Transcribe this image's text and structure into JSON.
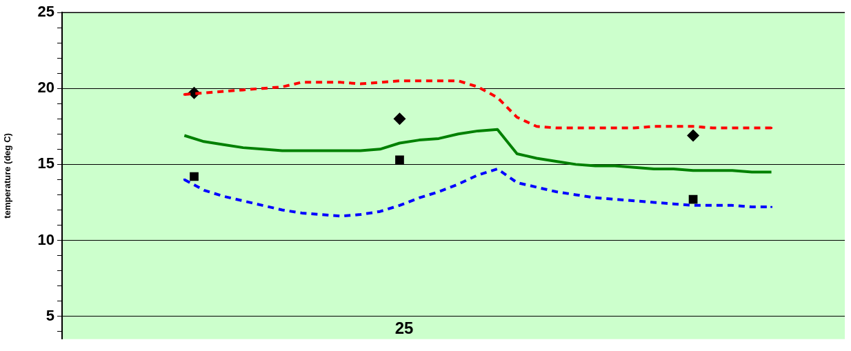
{
  "chart_data": {
    "type": "line",
    "ylabel": "temperature (deg C)",
    "ylim": [
      3.5,
      25
    ],
    "yticks": [
      {
        "value": 4,
        "label": null
      },
      5,
      {
        "value": 6,
        "label": null
      },
      {
        "value": 7,
        "label": null
      },
      {
        "value": 8,
        "label": null
      },
      {
        "value": 9,
        "label": null
      },
      10,
      {
        "value": 11,
        "label": null
      },
      {
        "value": 12,
        "label": null
      },
      {
        "value": 13,
        "label": null
      },
      {
        "value": 14,
        "label": null
      },
      15,
      {
        "value": 16,
        "label": null
      },
      {
        "value": 17,
        "label": null
      },
      {
        "value": 18,
        "label": null
      },
      {
        "value": 19,
        "label": null
      },
      20,
      {
        "value": 21,
        "label": null
      },
      {
        "value": 22,
        "label": null
      },
      {
        "value": 23,
        "label": null
      },
      {
        "value": 24,
        "label": null
      },
      25
    ],
    "grid": "y",
    "tick_labels": "y",
    "annotations": [
      "25"
    ],
    "categories": [
      null,
      null,
      null,
      null,
      null,
      null,
      null,
      null,
      null,
      null,
      null,
      null,
      null,
      null,
      null,
      null,
      null,
      null,
      null,
      null,
      null,
      null,
      null,
      null,
      null,
      null,
      null,
      null,
      null,
      null,
      null,
      null,
      null,
      null,
      null,
      null,
      null,
      null,
      null,
      null,
      null,
      null,
      null,
      null,
      null,
      null,
      null,
      null,
      null,
      null,
      null,
      null,
      null,
      null,
      null,
      null,
      null,
      null,
      null,
      null,
      null,
      null,
      null,
      null,
      null,
      null,
      null,
      null,
      null,
      null,
      null,
      null,
      null,
      null,
      null,
      null,
      null,
      null,
      null,
      null
    ],
    "series": [
      {
        "color": "#ff0000",
        "line_style": "dotted",
        "marker": "none",
        "values": [
          null,
          null,
          null,
          null,
          null,
          null,
          null,
          null,
          null,
          null,
          null,
          null,
          19.6,
          null,
          19.7,
          null,
          19.8,
          null,
          19.9,
          null,
          20.0,
          null,
          20.1,
          null,
          20.4,
          null,
          20.4,
          null,
          20.4,
          null,
          20.3,
          null,
          20.4,
          null,
          20.5,
          null,
          20.5,
          null,
          20.5,
          null,
          20.5,
          null,
          20.1,
          null,
          19.4,
          null,
          18.1,
          null,
          17.5,
          null,
          17.4,
          null,
          17.4,
          null,
          17.4,
          null,
          17.4,
          null,
          17.4,
          null,
          17.5,
          null,
          17.5,
          null,
          17.5,
          null,
          17.4,
          null,
          17.4,
          null,
          17.4,
          null,
          17.4,
          null,
          null,
          null,
          null,
          null,
          null,
          null
        ]
      },
      {
        "color": "#008000",
        "line_style": "solid",
        "marker": "none",
        "values": [
          null,
          null,
          null,
          null,
          null,
          null,
          null,
          null,
          null,
          null,
          null,
          null,
          16.9,
          null,
          16.5,
          null,
          16.3,
          null,
          16.1,
          null,
          16.0,
          null,
          15.9,
          null,
          15.9,
          null,
          15.9,
          null,
          15.9,
          null,
          15.9,
          null,
          16.0,
          null,
          16.4,
          null,
          16.6,
          null,
          16.7,
          null,
          17.0,
          null,
          17.2,
          null,
          17.3,
          null,
          15.7,
          null,
          15.4,
          null,
          15.2,
          null,
          15.0,
          null,
          14.9,
          null,
          14.9,
          null,
          14.8,
          null,
          14.7,
          null,
          14.7,
          null,
          14.6,
          null,
          14.6,
          null,
          14.6,
          null,
          14.5,
          null,
          14.5,
          null,
          null,
          null,
          null,
          null,
          null,
          null
        ]
      },
      {
        "color": "#0000ff",
        "line_style": "dotted",
        "marker": "none",
        "values": [
          null,
          null,
          null,
          null,
          null,
          null,
          null,
          null,
          null,
          null,
          null,
          null,
          14.0,
          null,
          13.3,
          null,
          12.9,
          null,
          12.6,
          null,
          12.3,
          null,
          12.0,
          null,
          11.8,
          null,
          11.7,
          null,
          11.6,
          null,
          11.7,
          null,
          11.9,
          null,
          12.3,
          null,
          12.8,
          null,
          13.2,
          null,
          13.7,
          null,
          14.3,
          null,
          14.7,
          null,
          13.8,
          null,
          13.5,
          null,
          13.2,
          null,
          13.0,
          null,
          12.8,
          null,
          12.7,
          null,
          12.6,
          null,
          12.5,
          null,
          12.4,
          null,
          12.3,
          null,
          12.3,
          null,
          12.3,
          null,
          12.2,
          null,
          12.2,
          null,
          null,
          null,
          null,
          null,
          null,
          null
        ]
      },
      {
        "type": "scatter",
        "color": "#000000",
        "marker": "diamond",
        "values": [
          null,
          null,
          null,
          null,
          null,
          null,
          null,
          null,
          null,
          null,
          null,
          null,
          null,
          19.7,
          null,
          null,
          null,
          null,
          null,
          null,
          null,
          null,
          null,
          null,
          null,
          null,
          null,
          null,
          null,
          null,
          null,
          null,
          null,
          null,
          18.0,
          null,
          null,
          null,
          null,
          null,
          null,
          null,
          null,
          null,
          null,
          null,
          null,
          null,
          null,
          null,
          null,
          null,
          null,
          null,
          null,
          null,
          null,
          null,
          null,
          null,
          null,
          null,
          null,
          null,
          16.9,
          null,
          null,
          null,
          null,
          null,
          null,
          null,
          null,
          null,
          null,
          null,
          null,
          null,
          null,
          null
        ]
      },
      {
        "type": "scatter",
        "color": "#000000",
        "marker": "square",
        "values": [
          null,
          null,
          null,
          null,
          null,
          null,
          null,
          null,
          null,
          null,
          null,
          null,
          null,
          14.2,
          null,
          null,
          null,
          null,
          null,
          null,
          null,
          null,
          null,
          null,
          null,
          null,
          null,
          null,
          null,
          null,
          null,
          null,
          null,
          null,
          15.3,
          null,
          null,
          null,
          null,
          null,
          null,
          null,
          null,
          null,
          null,
          null,
          null,
          null,
          null,
          null,
          null,
          null,
          null,
          null,
          null,
          null,
          null,
          null,
          null,
          null,
          null,
          null,
          null,
          null,
          12.7,
          null,
          null,
          null,
          null,
          null,
          null,
          null,
          null,
          null,
          null,
          null,
          null,
          null,
          null,
          null
        ]
      }
    ]
  }
}
